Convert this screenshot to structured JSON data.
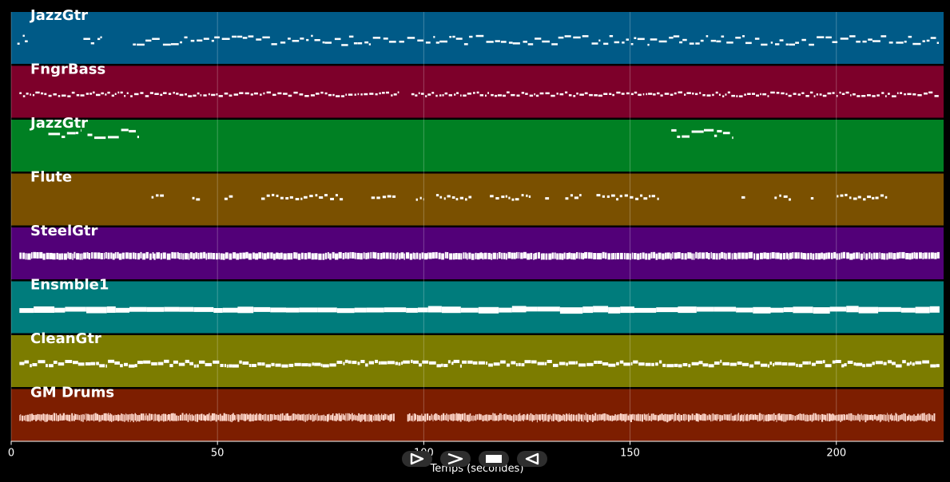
{
  "chart_data": {
    "type": "piano-roll",
    "xlabel": "Temps (secondes)",
    "xlim": [
      0,
      226
    ],
    "x_ticks": [
      0,
      50,
      100,
      150,
      200
    ],
    "grid": true,
    "tracks": [
      {
        "name": "JazzGtr",
        "color": "#005a87",
        "density": "medium",
        "segments": [
          [
            1.5,
            4
          ],
          [
            17.5,
            22
          ],
          [
            29.5,
            225
          ]
        ],
        "style": "melodic"
      },
      {
        "name": "FngrBass",
        "color": "#7d002a",
        "density": "dense",
        "segments": [
          [
            2,
            94
          ],
          [
            97,
            225
          ]
        ],
        "style": "bass"
      },
      {
        "name": "JazzGtr",
        "color": "#008023",
        "density": "sparse",
        "segments": [
          [
            9,
            17
          ],
          [
            18.5,
            31
          ],
          [
            160,
            175
          ]
        ],
        "style": "phrase"
      },
      {
        "name": "Flute",
        "color": "#7a5000",
        "density": "sparse",
        "segments": [
          [
            34,
            100
          ],
          [
            103,
            157
          ],
          [
            177,
            218
          ]
        ],
        "style": "bursts"
      },
      {
        "name": "SteelGtr",
        "color": "#520078",
        "density": "very-dense",
        "segments": [
          [
            2,
            225
          ]
        ],
        "style": "strum"
      },
      {
        "name": "Ensmble1",
        "color": "#007c7c",
        "density": "sustained",
        "segments": [
          [
            2,
            225
          ]
        ],
        "style": "pad"
      },
      {
        "name": "CleanGtr",
        "color": "#7c7c00",
        "density": "dense",
        "segments": [
          [
            2,
            225
          ]
        ],
        "style": "comp"
      },
      {
        "name": "GM Drums",
        "color": "#7d1e00",
        "density": "very-dense",
        "segments": [
          [
            2,
            93
          ],
          [
            96,
            224
          ]
        ],
        "style": "drums"
      }
    ]
  },
  "controls": {
    "buttons": [
      {
        "name": "step-forward-button",
        "icon": "play-step-icon"
      },
      {
        "name": "next-button",
        "icon": "chevron-right-icon"
      },
      {
        "name": "stop-button",
        "icon": "stop-icon"
      },
      {
        "name": "back-button",
        "icon": "play-back-icon"
      }
    ]
  }
}
